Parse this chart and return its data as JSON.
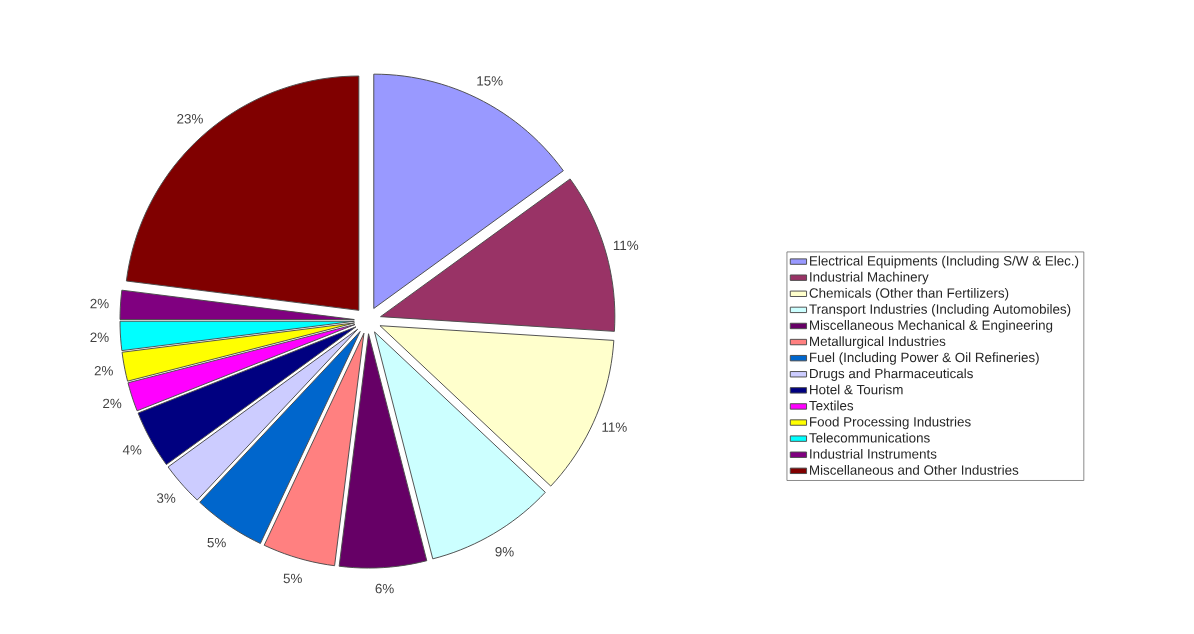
{
  "chart_data": {
    "type": "pie",
    "categories": [
      "Electrical Equipments (Including S/W & Elec.)",
      "Industrial Machinery",
      "Chemicals (Other than Fertilizers)",
      "Transport Industries (Including Automobiles)",
      "Miscellaneous Mechanical & Engineering",
      "Metallurgical Industries",
      "Fuel (Including Power & Oil Refineries)",
      "Drugs and Pharmaceuticals",
      "Hotel & Tourism",
      "Textiles",
      "Food Processing Industries",
      "Telecommunications",
      "Industrial Instruments",
      "Miscellaneous and Other Industries"
    ],
    "values": [
      15,
      11,
      11,
      9,
      6,
      5,
      5,
      3,
      4,
      2,
      2,
      2,
      2,
      23
    ],
    "value_labels": [
      "15%",
      "11%",
      "11%",
      "9%",
      "6%",
      "5%",
      "5%",
      "3%",
      "4%",
      "2%",
      "2%",
      "2%",
      "2%",
      "23%"
    ],
    "colors": [
      "#9999ff",
      "#993366",
      "#ffffcc",
      "#ccffff",
      "#660066",
      "#ff8080",
      "#0066cc",
      "#ccccff",
      "#000080",
      "#ff00ff",
      "#ffff00",
      "#00ffff",
      "#800080",
      "#800000"
    ],
    "legend": "right"
  }
}
